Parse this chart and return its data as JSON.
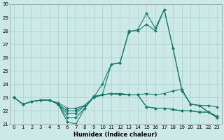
{
  "xlabel": "Humidex (Indice chaleur)",
  "ylim": [
    21,
    30
  ],
  "xlim": [
    -0.5,
    23.5
  ],
  "yticks": [
    21,
    22,
    23,
    24,
    25,
    26,
    27,
    28,
    29,
    30
  ],
  "xticks": [
    0,
    1,
    2,
    3,
    4,
    5,
    6,
    7,
    8,
    9,
    10,
    11,
    12,
    13,
    14,
    15,
    16,
    17,
    18,
    19,
    20,
    21,
    22,
    23
  ],
  "bg_color": "#cce9e7",
  "grid_color": "#aacfcc",
  "line_color": "#1a7a6e",
  "lines": [
    [
      23.0,
      22.5,
      22.7,
      22.8,
      22.8,
      22.5,
      21.2,
      21.0,
      22.2,
      23.1,
      23.2,
      25.5,
      25.6,
      27.9,
      28.1,
      29.3,
      28.2,
      29.6,
      26.7,
      23.6,
      22.5,
      22.4,
      21.9,
      21.5
    ],
    [
      23.0,
      22.5,
      22.7,
      22.8,
      22.8,
      22.5,
      21.5,
      21.5,
      22.2,
      23.0,
      24.0,
      25.5,
      25.6,
      28.0,
      28.0,
      28.5,
      28.0,
      29.6,
      26.7,
      23.5,
      22.5,
      22.4,
      21.9,
      21.5
    ],
    [
      23.0,
      22.5,
      22.7,
      22.8,
      22.8,
      22.5,
      21.8,
      21.8,
      22.4,
      23.0,
      23.2,
      23.3,
      23.2,
      23.2,
      23.2,
      23.3,
      23.2,
      23.3,
      23.5,
      23.6,
      22.5,
      22.4,
      22.4,
      22.3
    ],
    [
      23.0,
      22.5,
      22.7,
      22.8,
      22.8,
      22.5,
      22.0,
      22.0,
      22.4,
      23.0,
      23.2,
      23.3,
      23.3,
      23.2,
      23.2,
      22.3,
      22.2,
      22.2,
      22.1,
      22.0,
      22.0,
      21.9,
      21.9,
      21.6
    ],
    [
      23.0,
      22.5,
      22.7,
      22.8,
      22.8,
      22.6,
      22.2,
      22.2,
      22.4,
      23.0,
      23.2,
      23.3,
      23.3,
      23.2,
      23.2,
      22.3,
      22.2,
      22.2,
      22.1,
      22.0,
      22.0,
      21.9,
      21.9,
      21.6
    ]
  ],
  "xlabel_fontsize": 6.0,
  "tick_fontsize": 5.0,
  "linewidth": 0.8,
  "markersize": 2.0
}
